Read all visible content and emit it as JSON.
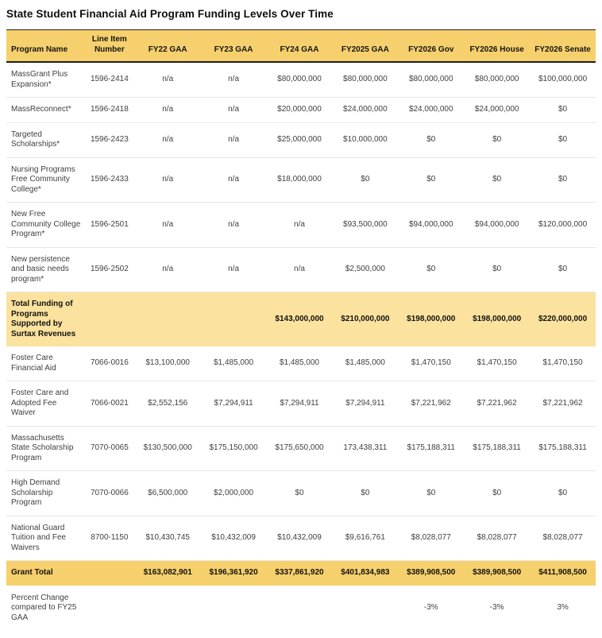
{
  "title": "State Student Financial Aid Program Funding Levels Over Time",
  "colors": {
    "header_gold": "#F6D06C",
    "subtotal_yellow": "#FBE29E",
    "dark_border": "#1F1F1F",
    "row_separator": "#E7E7E7",
    "body_text": "#3F3F3F",
    "title_text": "#0F0F0F"
  },
  "table": {
    "columns": [
      "Program Name",
      "Line Item Number",
      "FY22 GAA",
      "FY23 GAA",
      "FY24 GAA",
      "FY2025 GAA",
      "FY2026 Gov",
      "FY2026 House",
      "FY2026 Senate"
    ],
    "rows": [
      {
        "type": "data",
        "cells": [
          "MassGrant Plus Expansion*",
          "1596-2414",
          "n/a",
          "n/a",
          "$80,000,000",
          "$80,000,000",
          "$80,000,000",
          "$80,000,000",
          "$100,000,000"
        ]
      },
      {
        "type": "data",
        "cells": [
          "MassReconnect*",
          "1596-2418",
          "n/a",
          "n/a",
          "$20,000,000",
          "$24,000,000",
          "$24,000,000",
          "$24,000,000",
          "$0"
        ]
      },
      {
        "type": "data",
        "cells": [
          "Targeted Scholarships*",
          "1596-2423",
          "n/a",
          "n/a",
          "$25,000,000",
          "$10,000,000",
          "$0",
          "$0",
          "$0"
        ]
      },
      {
        "type": "data",
        "cells": [
          "Nursing Programs Free Community College*",
          "1596-2433",
          "n/a",
          "n/a",
          "$18,000,000",
          "$0",
          "$0",
          "$0",
          "$0"
        ]
      },
      {
        "type": "data",
        "cells": [
          "New Free Community College Program*",
          "1596-2501",
          "n/a",
          "n/a",
          "n/a",
          "$93,500,000",
          "$94,000,000",
          "$94,000,000",
          "$120,000,000"
        ]
      },
      {
        "type": "data",
        "cells": [
          "New persistence and basic needs program*",
          "1596-2502",
          "n/a",
          "n/a",
          "n/a",
          "$2,500,000",
          "$0",
          "$0",
          "$0"
        ]
      },
      {
        "type": "subtotal",
        "cells": [
          "Total Funding of Programs Supported by Surtax Revenues",
          "",
          "",
          "",
          "$143,000,000",
          "$210,000,000",
          "$198,000,000",
          "$198,000,000",
          "$220,000,000"
        ]
      },
      {
        "type": "data",
        "cells": [
          "Foster Care Financial Aid",
          "7066-0016",
          "$13,100,000",
          "$1,485,000",
          "$1,485,000",
          "$1,485,000",
          "$1,470,150",
          "$1,470,150",
          "$1,470,150"
        ]
      },
      {
        "type": "data",
        "cells": [
          "Foster Care and Adopted Fee Waiver",
          "7066-0021",
          "$2,552,156",
          "$7,294,911",
          "$7,294,911",
          "$7,294,911",
          "$7,221,962",
          "$7,221,962",
          "$7,221,962"
        ]
      },
      {
        "type": "data",
        "cells": [
          "Massachusetts State Scholarship Program",
          "7070-0065",
          "$130,500,000",
          "$175,150,000",
          "$175,650,000",
          "173,438,311",
          "$175,188,311",
          "$175,188,311",
          "$175,188,311"
        ]
      },
      {
        "type": "data",
        "cells": [
          "High Demand Scholarship Program",
          "7070-0066",
          "$6,500,000",
          "$2,000,000",
          "$0",
          "$0",
          "$0",
          "$0",
          "$0"
        ]
      },
      {
        "type": "data",
        "cells": [
          "National Guard Tuition and Fee Waivers",
          "8700-1150",
          "$10,430,745",
          "$10,432,009",
          "$10,432,009",
          "$9,616,761",
          "$8,028,077",
          "$8,028,077",
          "$8,028,077"
        ]
      },
      {
        "type": "total",
        "cells": [
          "Grant Total",
          "",
          "$163,082,901",
          "$196,361,920",
          "$337,861,920",
          "$401,834,983",
          "$389,908,500",
          "$389,908,500",
          "$411,908,500"
        ]
      },
      {
        "type": "footer",
        "cells": [
          "Percent Change compared to FY25 GAA",
          "",
          "",
          "",
          "",
          "",
          "-3%",
          "-3%",
          "3%"
        ]
      }
    ]
  }
}
